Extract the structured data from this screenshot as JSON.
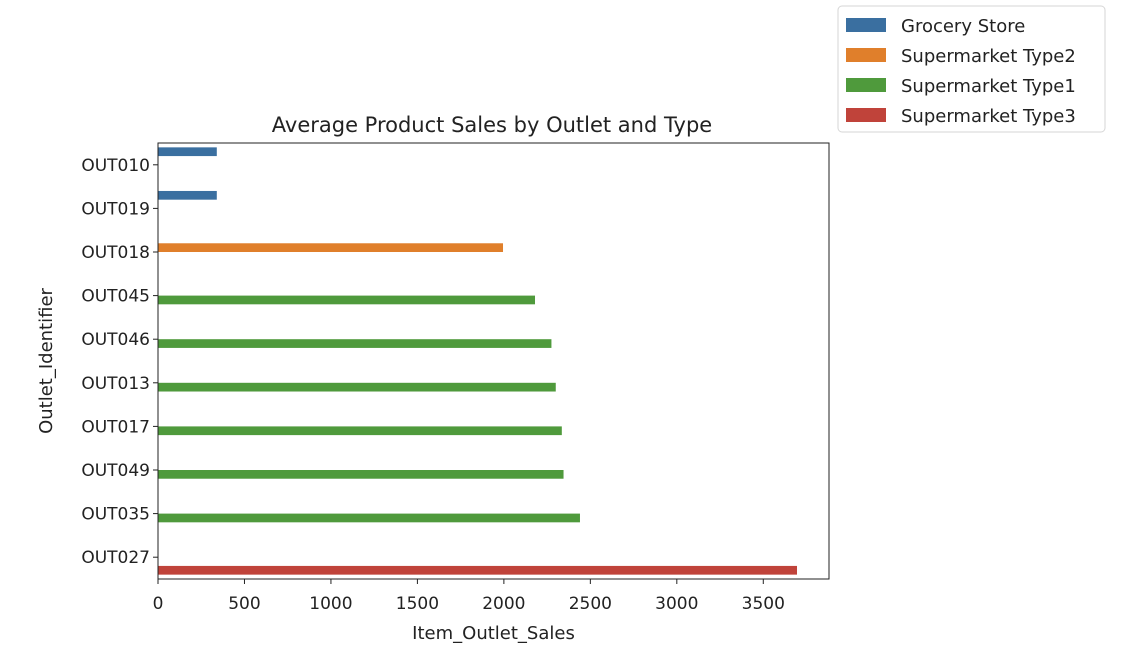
{
  "chart_data": {
    "type": "bar",
    "orientation": "horizontal",
    "title": "Average Product Sales by Outlet and Type",
    "xlabel": "Item_Outlet_Sales",
    "ylabel": "Outlet_Identifier",
    "xlim": [
      0,
      3880
    ],
    "xticks": [
      0,
      500,
      1000,
      1500,
      2000,
      2500,
      3000,
      3500
    ],
    "categories": [
      "OUT010",
      "OUT019",
      "OUT018",
      "OUT045",
      "OUT046",
      "OUT013",
      "OUT017",
      "OUT049",
      "OUT035",
      "OUT027"
    ],
    "series": [
      {
        "name": "Grocery Store",
        "color": "#3a6fa0",
        "values": [
          340,
          340,
          null,
          null,
          null,
          null,
          null,
          null,
          null,
          null
        ]
      },
      {
        "name": "Supermarket Type2",
        "color": "#e07f2b",
        "values": [
          null,
          null,
          1995,
          null,
          null,
          null,
          null,
          null,
          null,
          null
        ]
      },
      {
        "name": "Supermarket Type1",
        "color": "#4f9a3c",
        "values": [
          null,
          null,
          null,
          2180,
          2275,
          2300,
          2335,
          2345,
          2440,
          null
        ]
      },
      {
        "name": "Supermarket Type3",
        "color": "#c0433a",
        "values": [
          null,
          null,
          null,
          null,
          null,
          null,
          null,
          null,
          null,
          3695
        ]
      }
    ],
    "legend_position": "upper-right-outside",
    "grid": false
  }
}
